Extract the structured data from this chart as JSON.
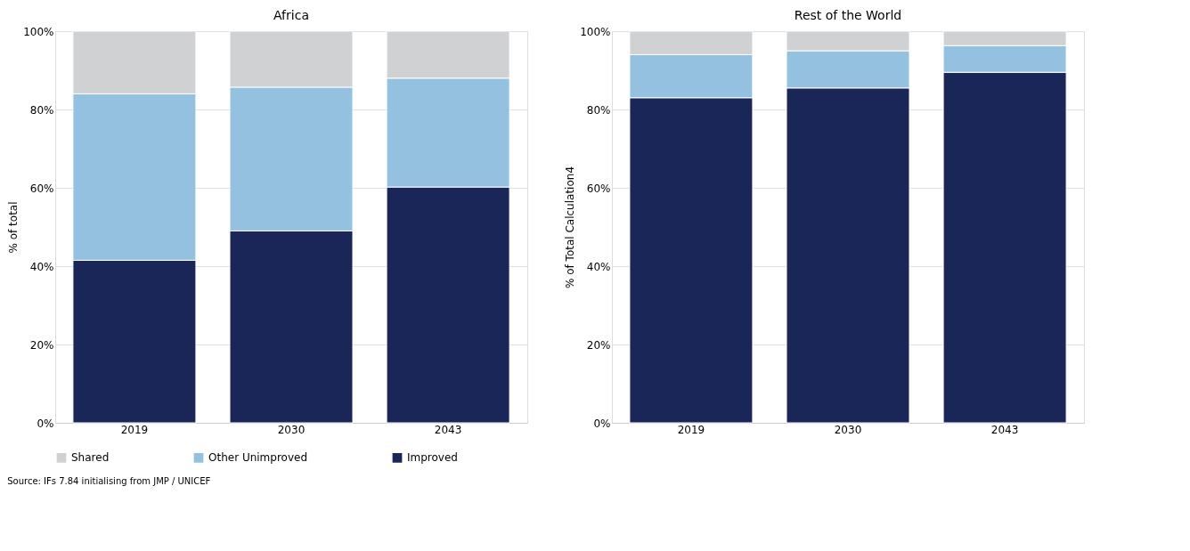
{
  "chart_data": [
    {
      "type": "bar",
      "title": "Africa",
      "ylabel": "% of total",
      "stacked": true,
      "categories": [
        "2019",
        "2030",
        "2043"
      ],
      "series": [
        {
          "name": "Improved",
          "color": "#1a2657",
          "values": [
            41.5,
            49,
            60.2
          ]
        },
        {
          "name": "Other Unimproved",
          "color": "#93c1df",
          "values": [
            42.5,
            36.7,
            27.8
          ]
        },
        {
          "name": "Shared",
          "color": "#d0d1d3",
          "values": [
            16,
            14.3,
            12
          ]
        }
      ],
      "ylim": [
        0,
        100
      ],
      "yticks": [
        {
          "value": 0,
          "label": "0%"
        },
        {
          "value": 20,
          "label": "20%"
        },
        {
          "value": 40,
          "label": "40%"
        },
        {
          "value": 60,
          "label": "60%"
        },
        {
          "value": 80,
          "label": "80%"
        },
        {
          "value": 100,
          "label": "100%"
        }
      ],
      "grid": "y",
      "legend": "bottom",
      "annotations": [
        "Source: IFs 7.84 initialising from JMP / UNICEF"
      ]
    },
    {
      "type": "bar",
      "title": "Rest of the World",
      "ylabel": "% of Total Calculation4",
      "stacked": true,
      "categories": [
        "2019",
        "2030",
        "2043"
      ],
      "series": [
        {
          "name": "Improved",
          "color": "#1a2657",
          "values": [
            83,
            85.5,
            89.5
          ]
        },
        {
          "name": "Other Unimproved",
          "color": "#93c1df",
          "values": [
            11,
            9.5,
            6.8
          ]
        },
        {
          "name": "Shared",
          "color": "#d0d1d3",
          "values": [
            6,
            5,
            3.7
          ]
        }
      ],
      "ylim": [
        0,
        100
      ],
      "yticks": [
        {
          "value": 0,
          "label": "0%"
        },
        {
          "value": 20,
          "label": "20%"
        },
        {
          "value": 40,
          "label": "40%"
        },
        {
          "value": 60,
          "label": "60%"
        },
        {
          "value": 80,
          "label": "80%"
        },
        {
          "value": 100,
          "label": "100%"
        }
      ],
      "grid": "y"
    }
  ]
}
